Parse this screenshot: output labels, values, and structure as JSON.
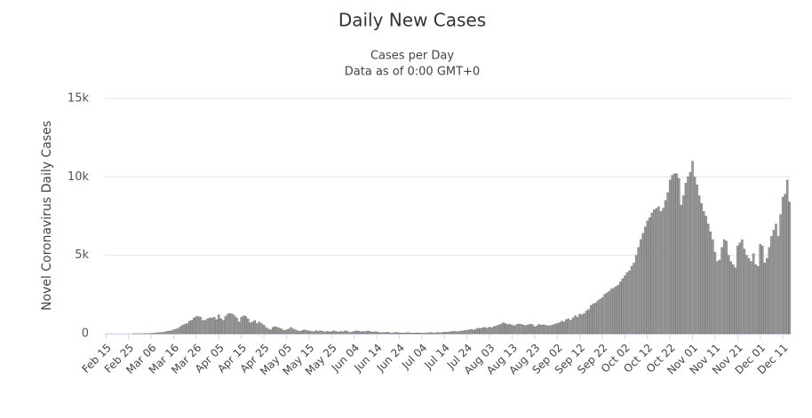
{
  "chart_data": {
    "type": "bar",
    "title": "Daily New Cases",
    "subtitle": [
      "Cases per Day",
      "Data as of 0:00 GMT+0"
    ],
    "y_axis_label": "Novel Coronavirus Daily Cases",
    "color": "#9a9a9a",
    "grid": true,
    "ylim": [
      0,
      15000
    ],
    "yticks": [
      0,
      {
        "value": 5000,
        "label": "5k"
      },
      {
        "value": 10000,
        "label": "10k"
      },
      {
        "value": 15000,
        "label": "15k"
      }
    ],
    "categories": [
      "Feb 15",
      null,
      null,
      null,
      null,
      null,
      null,
      null,
      null,
      null,
      "Feb 25",
      null,
      null,
      null,
      null,
      null,
      null,
      null,
      null,
      null,
      "Mar 06",
      null,
      null,
      null,
      null,
      null,
      null,
      null,
      null,
      null,
      "Mar 16",
      null,
      null,
      null,
      null,
      null,
      null,
      null,
      null,
      null,
      "Mar 26",
      null,
      null,
      null,
      null,
      null,
      null,
      null,
      null,
      null,
      "Apr 05",
      null,
      null,
      null,
      null,
      null,
      null,
      null,
      null,
      null,
      "Apr 15",
      null,
      null,
      null,
      null,
      null,
      null,
      null,
      null,
      null,
      "Apr 25",
      null,
      null,
      null,
      null,
      null,
      null,
      null,
      null,
      null,
      "May 05",
      null,
      null,
      null,
      null,
      null,
      null,
      null,
      null,
      null,
      "May 15",
      null,
      null,
      null,
      null,
      null,
      null,
      null,
      null,
      null,
      "May 25",
      null,
      null,
      null,
      null,
      null,
      null,
      null,
      null,
      null,
      "Jun 04",
      null,
      null,
      null,
      null,
      null,
      null,
      null,
      null,
      null,
      "Jun 14",
      null,
      null,
      null,
      null,
      null,
      null,
      null,
      null,
      null,
      "Jun 24",
      null,
      null,
      null,
      null,
      null,
      null,
      null,
      null,
      null,
      "Jul 04",
      null,
      null,
      null,
      null,
      null,
      null,
      null,
      null,
      null,
      "Jul 14",
      null,
      null,
      null,
      null,
      null,
      null,
      null,
      null,
      null,
      "Jul 24",
      null,
      null,
      null,
      null,
      null,
      null,
      null,
      null,
      null,
      "Aug 03",
      null,
      null,
      null,
      null,
      null,
      null,
      null,
      null,
      null,
      "Aug 13",
      null,
      null,
      null,
      null,
      null,
      null,
      null,
      null,
      null,
      "Aug 23",
      null,
      null,
      null,
      null,
      null,
      null,
      null,
      null,
      null,
      "Sep 02",
      null,
      null,
      null,
      null,
      null,
      null,
      null,
      null,
      null,
      "Sep 12",
      null,
      null,
      null,
      null,
      null,
      null,
      null,
      null,
      null,
      "Sep 22",
      null,
      null,
      null,
      null,
      null,
      null,
      null,
      null,
      null,
      "Oct 02",
      null,
      null,
      null,
      null,
      null,
      null,
      null,
      null,
      null,
      "Oct 12",
      null,
      null,
      null,
      null,
      null,
      null,
      null,
      null,
      null,
      "Oct 22",
      null,
      null,
      null,
      null,
      null,
      null,
      null,
      null,
      null,
      "Nov 01",
      null,
      null,
      null,
      null,
      null,
      null,
      null,
      null,
      null,
      "Nov 11",
      null,
      null,
      null,
      null,
      null,
      null,
      null,
      null,
      null,
      "Nov 21",
      null,
      null,
      null,
      null,
      null,
      null,
      null,
      null,
      null,
      "Dec 01",
      null,
      null,
      null,
      null,
      null,
      null,
      null,
      null,
      null,
      "Dec 11",
      null,
      null,
      null
    ],
    "values": [
      0,
      0,
      0,
      0,
      0,
      0,
      0,
      0,
      0,
      0,
      0,
      0,
      1,
      1,
      2,
      2,
      5,
      8,
      10,
      15,
      20,
      30,
      50,
      60,
      80,
      70,
      100,
      150,
      170,
      180,
      250,
      290,
      350,
      450,
      550,
      600,
      650,
      800,
      850,
      1000,
      1100,
      1100,
      1050,
      850,
      850,
      950,
      1000,
      1000,
      1050,
      900,
      1200,
      950,
      850,
      1100,
      1250,
      1300,
      1250,
      1150,
      1000,
      750,
      1050,
      1150,
      1100,
      950,
      700,
      750,
      850,
      650,
      750,
      650,
      550,
      400,
      300,
      250,
      400,
      450,
      400,
      350,
      300,
      200,
      250,
      300,
      400,
      300,
      250,
      180,
      150,
      200,
      250,
      200,
      180,
      150,
      120,
      200,
      150,
      180,
      160,
      100,
      150,
      120,
      130,
      180,
      140,
      100,
      150,
      120,
      180,
      160,
      80,
      100,
      150,
      180,
      160,
      120,
      140,
      130,
      170,
      150,
      100,
      120,
      130,
      90,
      60,
      80,
      70,
      100,
      50,
      40,
      70,
      80,
      60,
      40,
      50,
      60,
      70,
      40,
      50,
      40,
      60,
      50,
      40,
      30,
      50,
      60,
      70,
      50,
      40,
      80,
      60,
      70,
      100,
      90,
      110,
      120,
      150,
      140,
      130,
      160,
      180,
      200,
      220,
      250,
      270,
      230,
      300,
      350,
      330,
      380,
      400,
      350,
      420,
      380,
      450,
      500,
      550,
      600,
      700,
      650,
      580,
      600,
      550,
      500,
      580,
      620,
      600,
      550,
      520,
      560,
      600,
      590,
      450,
      500,
      600,
      550,
      570,
      540,
      500,
      520,
      550,
      620,
      650,
      700,
      800,
      750,
      900,
      950,
      850,
      1000,
      1150,
      1050,
      1250,
      1200,
      1300,
      1450,
      1550,
      1800,
      1900,
      1950,
      2100,
      2200,
      2300,
      2500,
      2600,
      2700,
      2850,
      2900,
      3000,
      3100,
      3300,
      3500,
      3700,
      3900,
      4000,
      4300,
      4500,
      5000,
      5500,
      6000,
      6400,
      6800,
      7200,
      7400,
      7700,
      7900,
      8000,
      8100,
      7800,
      8000,
      8500,
      9000,
      9800,
      10100,
      10200,
      10200,
      9900,
      8200,
      8800,
      9600,
      10000,
      10300,
      11000,
      10000,
      9500,
      8800,
      8300,
      7800,
      7500,
      7000,
      6500,
      6000,
      5200,
      4600,
      4700,
      5500,
      6000,
      5900,
      5000,
      4600,
      4400,
      4200,
      5600,
      5800,
      6000,
      5400,
      5000,
      4800,
      4600,
      5100,
      4400,
      4300,
      5700,
      5600,
      4500,
      4800,
      5500,
      6200,
      6600,
      7000,
      6200,
      7600,
      8700,
      8900,
      9800,
      8400
    ]
  }
}
